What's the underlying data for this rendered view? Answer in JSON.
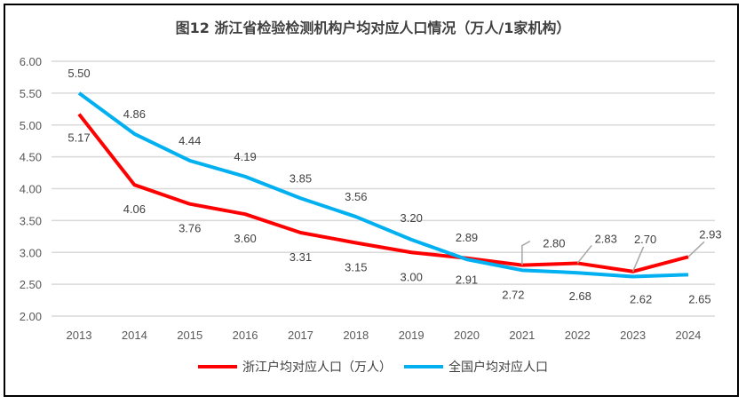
{
  "chart_data": {
    "type": "line",
    "title": "图12  浙江省检验检测机构户均对应人口情况（万人/1家机构）",
    "xlabel": "",
    "ylabel": "",
    "categories": [
      "2013",
      "2014",
      "2015",
      "2016",
      "2017",
      "2018",
      "2019",
      "2020",
      "2021",
      "2022",
      "2023",
      "2024"
    ],
    "ylim": [
      2.0,
      6.0
    ],
    "yticks": [
      "2.00",
      "2.50",
      "3.00",
      "3.50",
      "4.00",
      "4.50",
      "5.00",
      "5.50",
      "6.00"
    ],
    "grid": true,
    "legend_position": "bottom",
    "series": [
      {
        "name": "浙江户均对应人口（万人）",
        "color": "#ff0000",
        "values": [
          5.17,
          4.06,
          3.76,
          3.6,
          3.31,
          3.15,
          3.0,
          2.91,
          2.8,
          2.83,
          2.7,
          2.93
        ],
        "labels": [
          "5.17",
          "4.06",
          "3.76",
          "3.60",
          "3.31",
          "3.15",
          "3.00",
          "2.91",
          "2.80",
          "2.83",
          "2.70",
          "2.93"
        ]
      },
      {
        "name": "全国户均对应人口",
        "color": "#00b0f0",
        "values": [
          5.5,
          4.86,
          4.44,
          4.19,
          3.85,
          3.56,
          3.2,
          2.89,
          2.72,
          2.68,
          2.62,
          2.65
        ],
        "labels": [
          "5.50",
          "4.86",
          "4.44",
          "4.19",
          "3.85",
          "3.56",
          "3.20",
          "2.89",
          "2.72",
          "2.68",
          "2.62",
          "2.65"
        ]
      }
    ]
  }
}
